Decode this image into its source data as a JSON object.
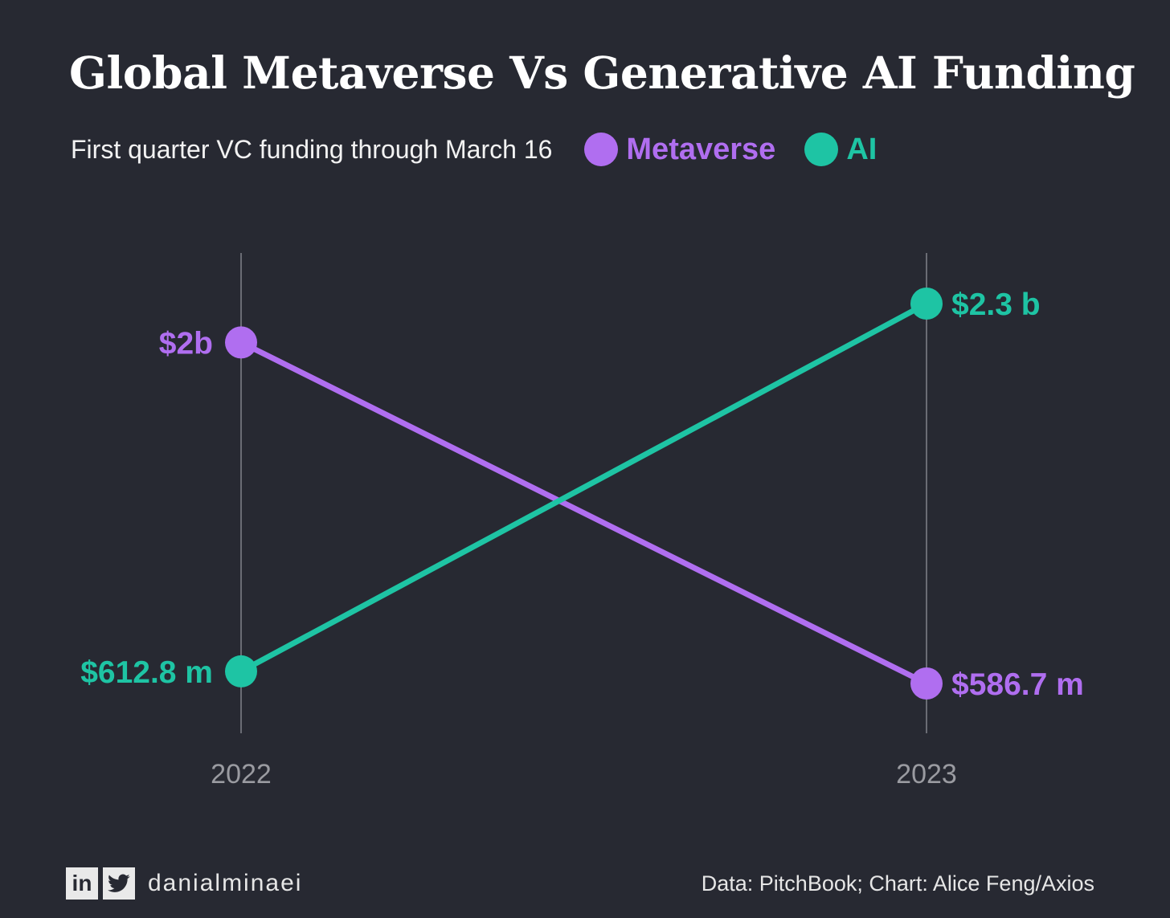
{
  "title": "Global Metaverse Vs Generative AI Funding",
  "subtitle": "First quarter VC funding through March 16",
  "legend": [
    {
      "label": "Metaverse",
      "color": "#b06ef0"
    },
    {
      "label": "AI",
      "color": "#1ec4a4"
    }
  ],
  "footer": {
    "handle": "danialminaei",
    "icons": [
      "linkedin-icon",
      "twitter-icon"
    ],
    "source": "Data: PitchBook; Chart: Alice Feng/Axios"
  },
  "chart_data": {
    "type": "line",
    "x": [
      "2022",
      "2023"
    ],
    "series": [
      {
        "name": "Metaverse",
        "values": [
          2000,
          586.7
        ],
        "labels": [
          "$2b",
          "$586.7 m"
        ],
        "color": "#b06ef0"
      },
      {
        "name": "AI",
        "values": [
          612.8,
          2300
        ],
        "labels": [
          "$612.8 m",
          "$2.3 b"
        ],
        "color": "#1ec4a4"
      }
    ],
    "ylabel": "",
    "grid": "vertical lines at each year",
    "legend": "top"
  }
}
